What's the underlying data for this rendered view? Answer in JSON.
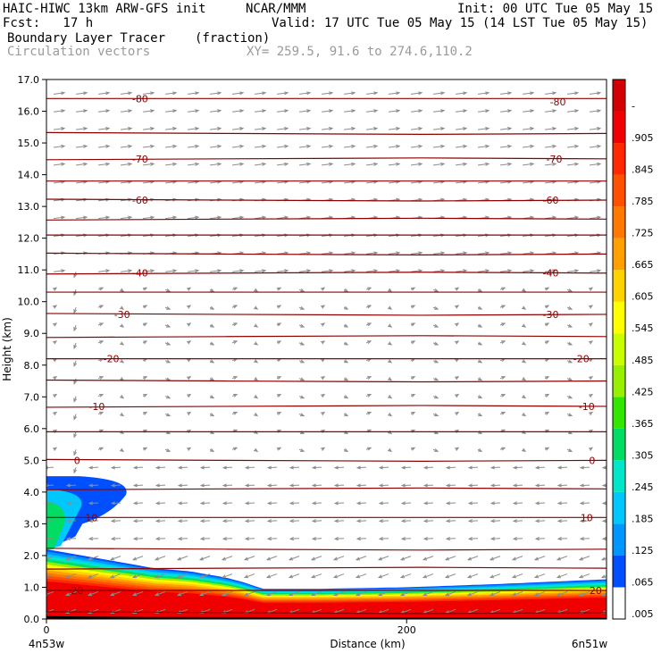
{
  "header": {
    "title": "HAIC-HIWC 13km ARW-GFS init",
    "org": "NCAR/MMM",
    "init": "Init: 00 UTC Tue 05 May 15",
    "fcst": "Fcst:   17 h",
    "valid": "Valid: 17 UTC Tue 05 May 15 (14 LST Tue 05 May 15)",
    "field": "Boundary Layer Tracer",
    "units": "(fraction)",
    "vectors": "Circulation vectors",
    "xy": "XY= 259.5, 91.6 to 274.6,110.2"
  },
  "chart_data": {
    "type": "heatmap",
    "title": "Boundary Layer Tracer",
    "units": "(fraction)",
    "xlabel": "Distance (km)",
    "ylabel": "Height (km)",
    "xlim": [
      0,
      311
    ],
    "ylim": [
      0,
      17
    ],
    "x_ticks": [
      "0",
      "200"
    ],
    "y_ticks": [
      "0.0",
      "1.0",
      "2.0",
      "3.0",
      "4.0",
      "5.0",
      "6.0",
      "7.0",
      "8.0",
      "9.0",
      "10.0",
      "11.0",
      "12.0",
      "13.0",
      "14.0",
      "15.0",
      "16.0",
      "17.0"
    ],
    "left_end_label": "4n53w",
    "right_end_label": "6n51w",
    "colorbar": {
      "labels": [
        ".005",
        ".065",
        ".125",
        ".185",
        ".245",
        ".305",
        ".365",
        ".425",
        ".485",
        ".545",
        ".605",
        ".665",
        ".725",
        ".785",
        ".845",
        ".905",
        "-"
      ],
      "colors": [
        "#ffffff",
        "#0050ff",
        "#0096ff",
        "#00c8ff",
        "#00e6c8",
        "#00dc64",
        "#32e600",
        "#96f000",
        "#c8ff00",
        "#ffff00",
        "#ffd200",
        "#ffa000",
        "#ff7800",
        "#ff5000",
        "#ff2800",
        "#f00000",
        "#d20000"
      ]
    },
    "tracer_top_profile_km": {
      "distance_km": [
        0,
        20,
        40,
        60,
        80,
        100,
        110,
        120,
        150,
        200,
        250,
        311
      ],
      "height_km": [
        2.2,
        2.0,
        1.8,
        1.6,
        1.5,
        1.3,
        1.15,
        0.95,
        0.95,
        1.0,
        1.1,
        1.25
      ]
    },
    "plume": {
      "distance_km": [
        0,
        45
      ],
      "height_km": [
        2.5,
        4.5
      ]
    },
    "contour_labels": [
      {
        "value": "-80",
        "x": 52,
        "y": 16.4
      },
      {
        "value": "-80",
        "x": 284,
        "y": 16.3
      },
      {
        "value": "-70",
        "x": 52,
        "y": 14.5
      },
      {
        "value": "-70",
        "x": 282,
        "y": 14.5
      },
      {
        "value": "-60",
        "x": 52,
        "y": 13.2
      },
      {
        "value": "-60",
        "x": 280,
        "y": 13.2
      },
      {
        "value": "-40",
        "x": 52,
        "y": 10.9
      },
      {
        "value": "-40",
        "x": 280,
        "y": 10.9
      },
      {
        "value": "-30",
        "x": 42,
        "y": 9.6
      },
      {
        "value": "-30",
        "x": 280,
        "y": 9.6
      },
      {
        "value": "-20",
        "x": 36,
        "y": 8.2
      },
      {
        "value": "-20",
        "x": 297,
        "y": 8.2
      },
      {
        "value": "-10",
        "x": 28,
        "y": 6.7
      },
      {
        "value": "-10",
        "x": 300,
        "y": 6.7
      },
      {
        "value": "0",
        "x": 17,
        "y": 5.0
      },
      {
        "value": "0",
        "x": 303,
        "y": 5.0
      },
      {
        "value": "10",
        "x": 25,
        "y": 3.2
      },
      {
        "value": "10",
        "x": 300,
        "y": 3.2
      },
      {
        "value": "20",
        "x": 17,
        "y": 0.9
      },
      {
        "value": "20",
        "x": 305,
        "y": 0.9
      }
    ],
    "contour_heights_km": [
      0.2,
      0.9,
      1.6,
      2.2,
      3.2,
      4.1,
      5.0,
      5.9,
      6.7,
      7.5,
      8.2,
      8.9,
      9.6,
      10.3,
      10.9,
      11.5,
      12.1,
      12.6,
      13.2,
      13.8,
      14.5,
      15.3,
      16.4
    ]
  }
}
